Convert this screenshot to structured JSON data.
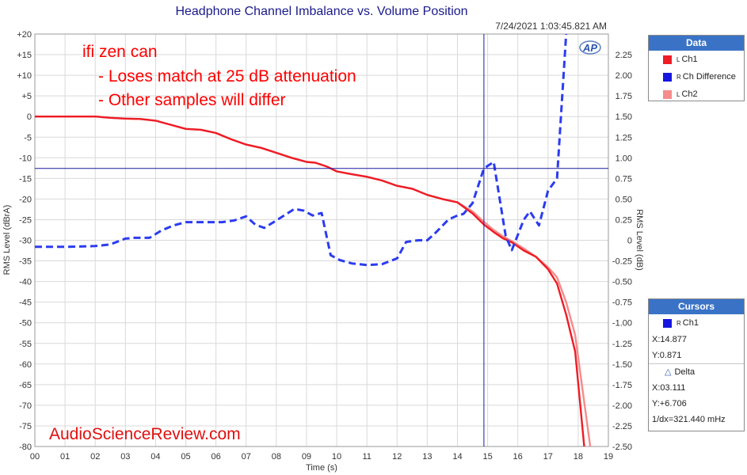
{
  "colors": {
    "ch1": "#ee1c25",
    "ch_diff": "#2b3cf0",
    "ch2": "#f58b8b",
    "annotation": "#ff0000",
    "cursor": "#1a1aa0",
    "header": "#3a73c6"
  },
  "timestamp": "7/24/2021 1:03:45.821 AM",
  "annotations": {
    "line1": "ifi zen can",
    "line2": "- Loses match at 25 dB attenuation",
    "line3": "- Other samples will differ"
  },
  "watermark": "AudioScienceReview.com",
  "ap_logo": "AP",
  "chart_data": {
    "type": "line",
    "title": "Headphone Channel Imbalance vs. Volume Position",
    "xlabel": "Time (s)",
    "ylabel": "RMS Level (dBrA)",
    "y2label": "RMS Level (dB)",
    "xlim": [
      0,
      19
    ],
    "ylim": [
      -80,
      20
    ],
    "y2lim": [
      -2.5,
      2.5
    ],
    "x_ticks": [
      "00",
      "01",
      "02",
      "03",
      "04",
      "05",
      "06",
      "07",
      "08",
      "09",
      "10",
      "11",
      "12",
      "13",
      "14",
      "15",
      "16",
      "17",
      "18",
      "19"
    ],
    "y_ticks": [
      "+20",
      "+15",
      "+10",
      "+5",
      "0",
      "-5",
      "-10",
      "-15",
      "-20",
      "-25",
      "-30",
      "-35",
      "-40",
      "-45",
      "-50",
      "-55",
      "-60",
      "-65",
      "-70",
      "-75",
      "-80"
    ],
    "y2_ticks": [
      "2.25",
      "2.00",
      "1.75",
      "1.50",
      "1.25",
      "1.00",
      "0.75",
      "0.50",
      "0.25",
      "0",
      "-0.25",
      "-0.50",
      "-0.75",
      "-1.00",
      "-1.25",
      "-1.50",
      "-1.75",
      "-2.00",
      "-2.25",
      "-2.50"
    ],
    "grid": true,
    "legend_position": "right",
    "cursor": {
      "x": 14.877,
      "y": 0.871
    },
    "series": [
      {
        "name": "Ch1",
        "axis": "left",
        "style": "solid",
        "x": [
          0,
          1,
          2,
          2.5,
          3,
          3.5,
          4,
          4.5,
          5,
          5.5,
          6,
          6.5,
          7,
          7.5,
          8,
          8.5,
          9,
          9.3,
          9.7,
          10,
          10.5,
          11,
          11.5,
          12,
          12.5,
          13,
          13.5,
          14,
          14.5,
          14.877,
          15.2,
          15.5,
          15.8,
          16.2,
          16.6,
          17,
          17.3,
          17.6,
          17.9,
          18.2
        ],
        "values": [
          0,
          0,
          0,
          -0.3,
          -0.5,
          -0.6,
          -1.0,
          -2.0,
          -3.0,
          -3.2,
          -4.0,
          -5.5,
          -6.8,
          -7.6,
          -8.8,
          -10.0,
          -11.0,
          -11.2,
          -12.2,
          -13.3,
          -14.0,
          -14.6,
          -15.5,
          -16.8,
          -17.5,
          -19.0,
          -20.0,
          -20.8,
          -23.5,
          -26.2,
          -28.0,
          -29.5,
          -30.5,
          -32.5,
          -34.0,
          -37.0,
          -40.5,
          -48.0,
          -57.0,
          -80.0
        ]
      },
      {
        "name": "Ch Difference",
        "axis": "right",
        "style": "dashed",
        "x": [
          0,
          1,
          2,
          2.5,
          3,
          3.3,
          3.8,
          4.2,
          4.6,
          5,
          5.4,
          6.2,
          6.6,
          7,
          7.3,
          7.6,
          8,
          8.6,
          8.9,
          9.2,
          9.5,
          9.8,
          10.1,
          10.5,
          11,
          11.5,
          12,
          12.3,
          12.7,
          13,
          13.3,
          13.7,
          14,
          14.2,
          14.5,
          14.877,
          15.2,
          15.6,
          15.8,
          16.2,
          16.4,
          16.7,
          17,
          17.3,
          17.6
        ],
        "values": [
          -0.08,
          -0.08,
          -0.07,
          -0.05,
          0.02,
          0.03,
          0.03,
          0.12,
          0.18,
          0.22,
          0.22,
          0.22,
          0.24,
          0.29,
          0.19,
          0.15,
          0.24,
          0.38,
          0.36,
          0.3,
          0.33,
          -0.18,
          -0.24,
          -0.28,
          -0.3,
          -0.29,
          -0.22,
          -0.02,
          0.0,
          0.0,
          0.1,
          0.25,
          0.3,
          0.32,
          0.45,
          0.871,
          0.95,
          0.05,
          -0.12,
          0.25,
          0.35,
          0.18,
          0.6,
          0.75,
          2.5
        ]
      },
      {
        "name": "Ch2",
        "axis": "left",
        "style": "solid",
        "x": [
          0,
          1,
          2,
          2.5,
          3,
          3.5,
          4,
          4.5,
          5,
          5.5,
          6,
          6.5,
          7,
          7.5,
          8,
          8.5,
          9,
          9.3,
          9.7,
          10,
          10.5,
          11,
          11.5,
          12,
          12.5,
          13,
          13.5,
          14,
          14.5,
          14.877,
          15.2,
          15.5,
          15.8,
          16.2,
          16.6,
          17,
          17.3,
          17.6,
          17.9,
          18.4
        ],
        "values": [
          0,
          0,
          0,
          -0.3,
          -0.5,
          -0.6,
          -1.0,
          -2.0,
          -3.0,
          -3.2,
          -4.0,
          -5.5,
          -6.8,
          -7.6,
          -8.8,
          -10.0,
          -11.0,
          -11.2,
          -12.2,
          -13.3,
          -14.0,
          -14.6,
          -15.5,
          -16.8,
          -17.5,
          -19.0,
          -20.0,
          -20.8,
          -23.0,
          -25.5,
          -27.5,
          -29.0,
          -30.2,
          -32.0,
          -34.0,
          -36.5,
          -39.0,
          -45.0,
          -53.0,
          -80.0
        ]
      }
    ]
  },
  "legend": {
    "title": "Data",
    "items": [
      {
        "sup": "L",
        "label": "Ch1"
      },
      {
        "sup": "R",
        "label": "Ch Difference"
      },
      {
        "sup": "L",
        "label": "Ch2"
      }
    ]
  },
  "cursors": {
    "title": "Cursors",
    "channel_sup": "R",
    "channel_label": "Ch1",
    "x_text": "X:14.877",
    "y_text": "Y:0.871",
    "delta_label": "Delta",
    "dx_text": "X:03.111",
    "dy_text": "Y:+6.706",
    "inv_dx_text": "1/dx=321.440 mHz"
  }
}
